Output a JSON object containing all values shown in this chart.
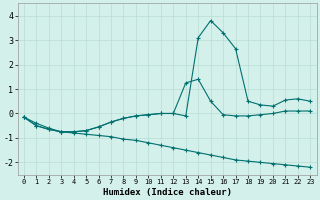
{
  "xlabel": "Humidex (Indice chaleur)",
  "xlim": [
    -0.5,
    23.5
  ],
  "ylim": [
    -2.5,
    4.5
  ],
  "xticks": [
    0,
    1,
    2,
    3,
    4,
    5,
    6,
    7,
    8,
    9,
    10,
    11,
    12,
    13,
    14,
    15,
    16,
    17,
    18,
    19,
    20,
    21,
    22,
    23
  ],
  "yticks": [
    -2,
    -1,
    0,
    1,
    2,
    3,
    4
  ],
  "bg_color": "#d4f0ea",
  "grid_color": "#b8ddd5",
  "line_color": "#007070",
  "line1_x": [
    0,
    1,
    2,
    3,
    4,
    5,
    6,
    7,
    8,
    9,
    10,
    11,
    12,
    13,
    14,
    15,
    16,
    17,
    18,
    19,
    20,
    21,
    22,
    23
  ],
  "line1_y": [
    -0.15,
    -0.5,
    -0.65,
    -0.75,
    -0.75,
    -0.7,
    -0.55,
    -0.35,
    -0.2,
    -0.1,
    -0.05,
    0.0,
    0.0,
    -0.1,
    3.1,
    3.8,
    3.3,
    2.65,
    0.5,
    0.35,
    0.3,
    0.55,
    0.6,
    0.5
  ],
  "line2_x": [
    0,
    1,
    2,
    3,
    4,
    5,
    6,
    7,
    8,
    9,
    10,
    11,
    12,
    13,
    14,
    15,
    16,
    17,
    18,
    19,
    20,
    21,
    22,
    23
  ],
  "line2_y": [
    -0.15,
    -0.5,
    -0.65,
    -0.75,
    -0.75,
    -0.7,
    -0.55,
    -0.35,
    -0.2,
    -0.1,
    -0.05,
    0.0,
    0.0,
    1.25,
    1.4,
    0.5,
    -0.05,
    -0.1,
    -0.1,
    -0.05,
    0.0,
    0.1,
    0.1,
    0.1
  ],
  "line3_x": [
    0,
    1,
    2,
    3,
    4,
    5,
    6,
    7,
    8,
    9,
    10,
    11,
    12,
    13,
    14,
    15,
    16,
    17,
    18,
    19,
    20,
    21,
    22,
    23
  ],
  "line3_y": [
    -0.15,
    -0.4,
    -0.6,
    -0.75,
    -0.8,
    -0.85,
    -0.9,
    -0.95,
    -1.05,
    -1.1,
    -1.2,
    -1.3,
    -1.4,
    -1.5,
    -1.6,
    -1.7,
    -1.8,
    -1.9,
    -1.95,
    -2.0,
    -2.05,
    -2.1,
    -2.15,
    -2.2
  ],
  "marker": "+"
}
